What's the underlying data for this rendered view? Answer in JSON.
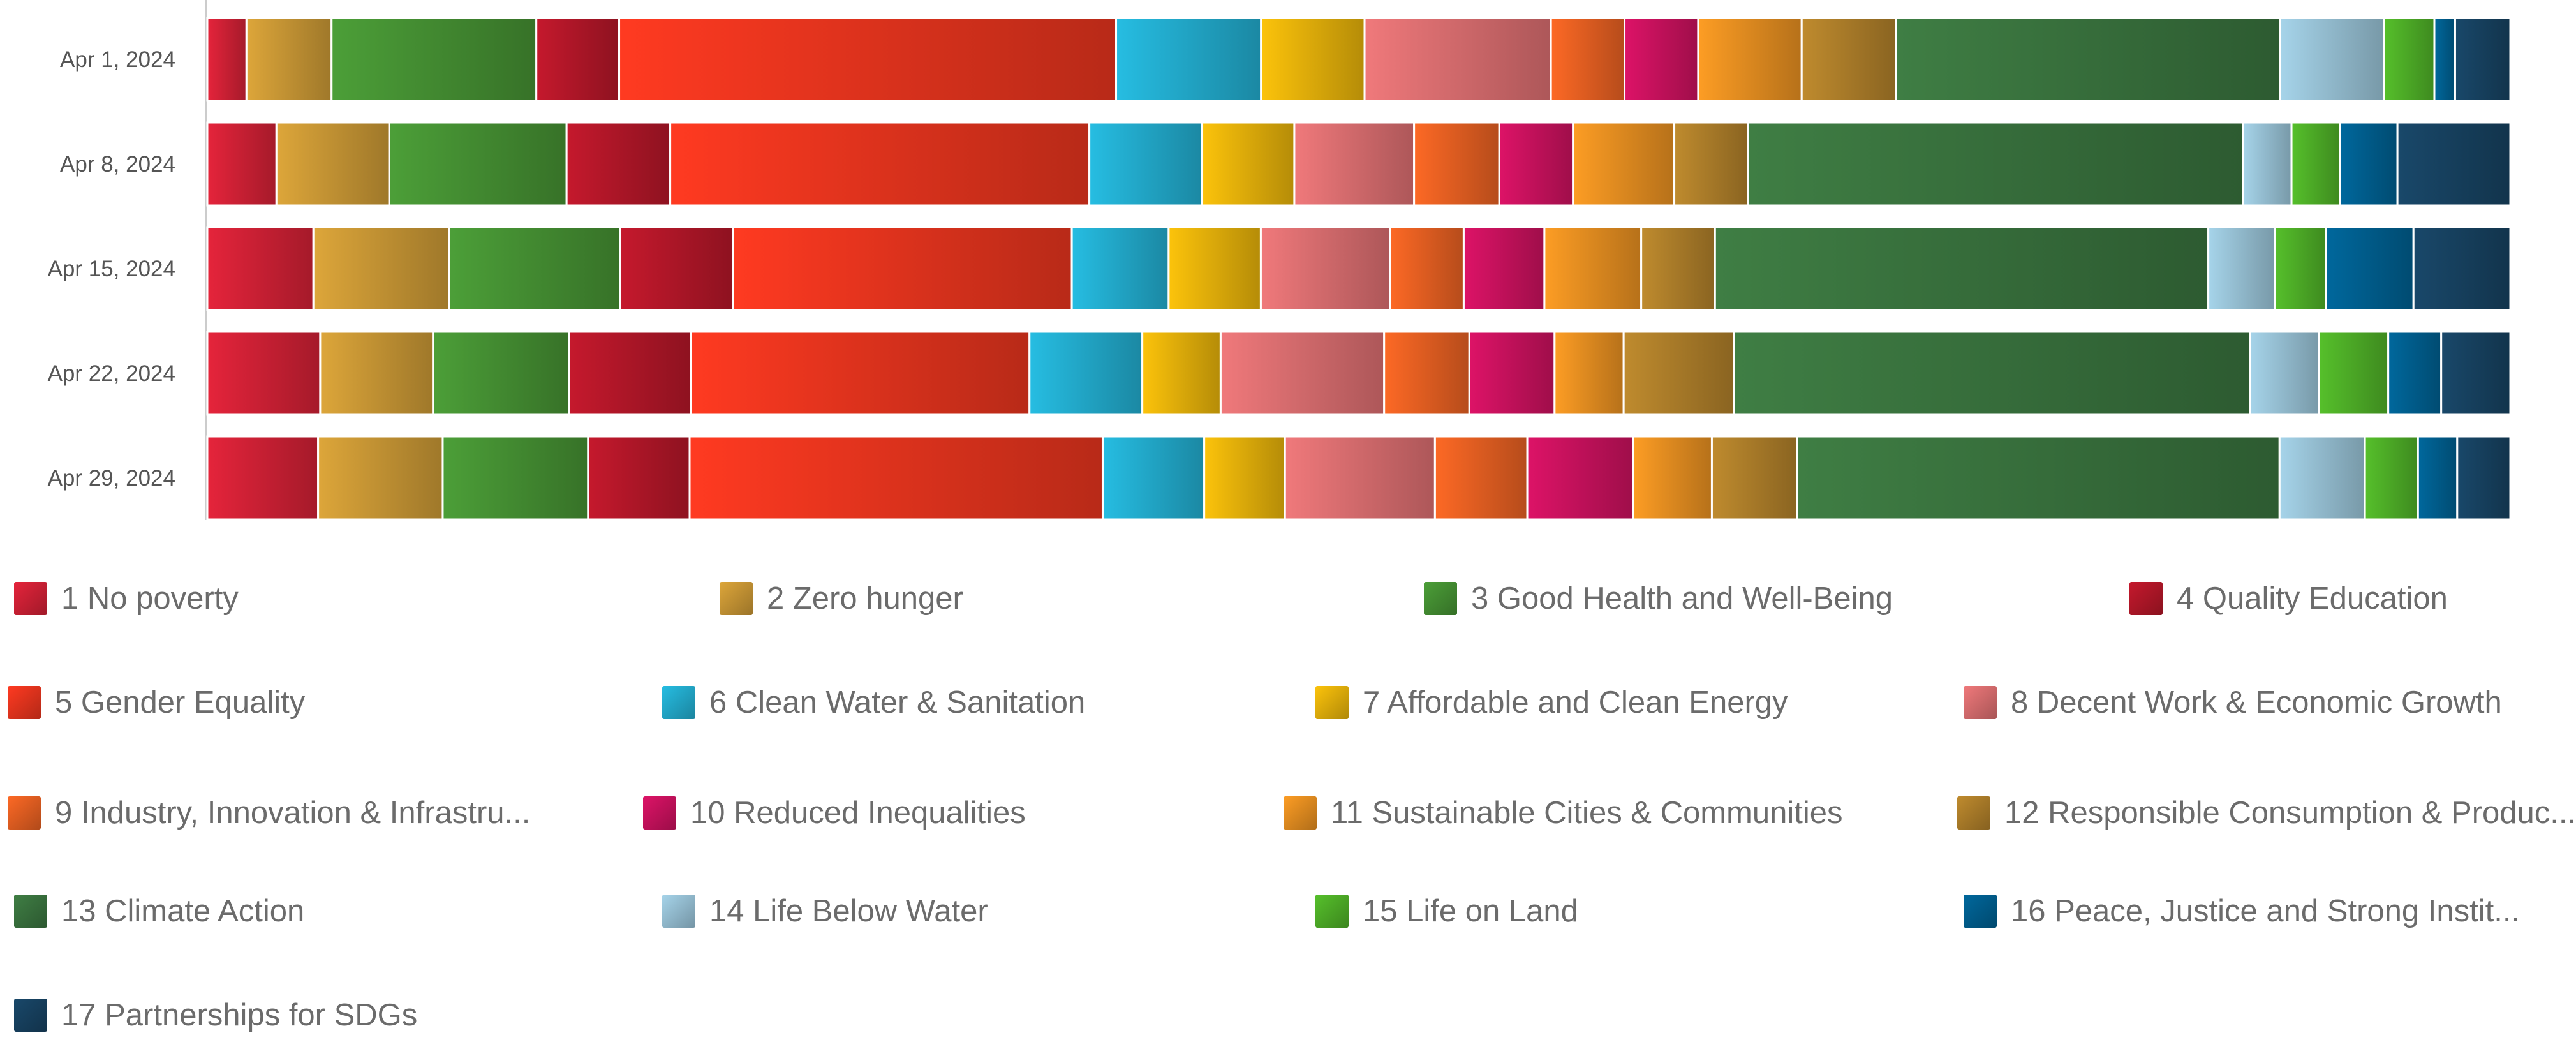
{
  "chart_data": {
    "type": "bar",
    "orientation": "horizontal",
    "stacked": true,
    "normalized_to_percent": true,
    "categories": [
      "Apr 1, 2024",
      "Apr 8, 2024",
      "Apr 15, 2024",
      "Apr 22, 2024",
      "Apr 29, 2024"
    ],
    "series": [
      {
        "name": "1 No poverty",
        "color": "#e5243b",
        "values": [
          1.7,
          3.0,
          4.6,
          4.9,
          4.8
        ]
      },
      {
        "name": "2 Zero hunger",
        "color": "#dda63a",
        "values": [
          3.7,
          4.9,
          5.9,
          4.9,
          5.4
        ]
      },
      {
        "name": "3 Good Health and Well-Being",
        "color": "#4c9f38",
        "values": [
          8.9,
          7.7,
          7.4,
          5.9,
          6.3
        ]
      },
      {
        "name": "4 Quality Education",
        "color": "#c5192d",
        "values": [
          3.6,
          4.5,
          4.9,
          5.3,
          4.4
        ]
      },
      {
        "name": "5 Gender Equality",
        "color": "#ff3a21",
        "values": [
          21.6,
          18.2,
          14.7,
          14.7,
          17.9
        ]
      },
      {
        "name": "6 Clean Water & Sanitation",
        "color": "#26bde2",
        "values": [
          6.3,
          4.9,
          4.2,
          4.9,
          4.4
        ]
      },
      {
        "name": "7 Affordable and Clean Energy",
        "color": "#fcc30b",
        "values": [
          4.5,
          4.0,
          4.0,
          3.4,
          3.5
        ]
      },
      {
        "name": "8 Decent Work & Economic Growth",
        "color": "#f0797b",
        "values": [
          8.1,
          5.2,
          5.6,
          7.1,
          6.5
        ]
      },
      {
        "name": "9 Industry, Innovation & Infrastructure",
        "color": "#fd6925",
        "values": [
          3.2,
          3.7,
          3.2,
          3.7,
          4.0
        ]
      },
      {
        "name": "10 Reduced Inequalities",
        "color": "#dd1367",
        "values": [
          3.2,
          3.2,
          3.5,
          3.7,
          4.6
        ]
      },
      {
        "name": "11 Sustainable Cities & Communities",
        "color": "#fd9d24",
        "values": [
          4.5,
          4.4,
          4.2,
          3.0,
          3.4
        ]
      },
      {
        "name": "12 Responsible Consumption & Production",
        "color": "#bf8b2e",
        "values": [
          4.1,
          3.2,
          3.2,
          4.8,
          3.7
        ]
      },
      {
        "name": "13 Climate Action",
        "color": "#3f7e44",
        "values": [
          16.7,
          21.5,
          21.4,
          22.4,
          20.9
        ]
      },
      {
        "name": "14 Life Below Water",
        "color": "#a6d4ea",
        "values": [
          4.5,
          2.1,
          2.9,
          3.0,
          3.7
        ]
      },
      {
        "name": "15 Life on Land",
        "color": "#56c02b",
        "values": [
          2.2,
          2.1,
          2.2,
          3.0,
          2.3
        ]
      },
      {
        "name": "16 Peace, Justice and Strong Institutions",
        "color": "#00689d",
        "values": [
          0.9,
          2.5,
          3.8,
          2.3,
          1.7
        ]
      },
      {
        "name": "17 Partnerships for SDGs",
        "color": "#19486a",
        "values": [
          2.4,
          4.9,
          4.2,
          3.0,
          2.3
        ]
      }
    ],
    "legend": {
      "position": "bottom",
      "labels": [
        "1 No poverty",
        "2 Zero hunger",
        "3 Good Health and Well-Being",
        "4 Quality Education",
        "5 Gender Equality",
        "6 Clean Water & Sanitation",
        "7 Affordable and Clean Energy",
        "8 Decent Work & Economic Growth",
        "9 Industry, Innovation & Infrastru...",
        "10 Reduced Inequalities",
        "11 Sustainable Cities & Communities",
        "12 Responsible Consumption & Produc...",
        "13 Climate Action",
        "14 Life Below Water",
        "15 Life on Land",
        "16 Peace, Justice and Strong Instit...",
        "17 Partnerships for SDGs"
      ]
    },
    "title": "",
    "xlabel": "",
    "ylabel": "",
    "xlim": [
      0,
      100
    ],
    "grid": false
  }
}
